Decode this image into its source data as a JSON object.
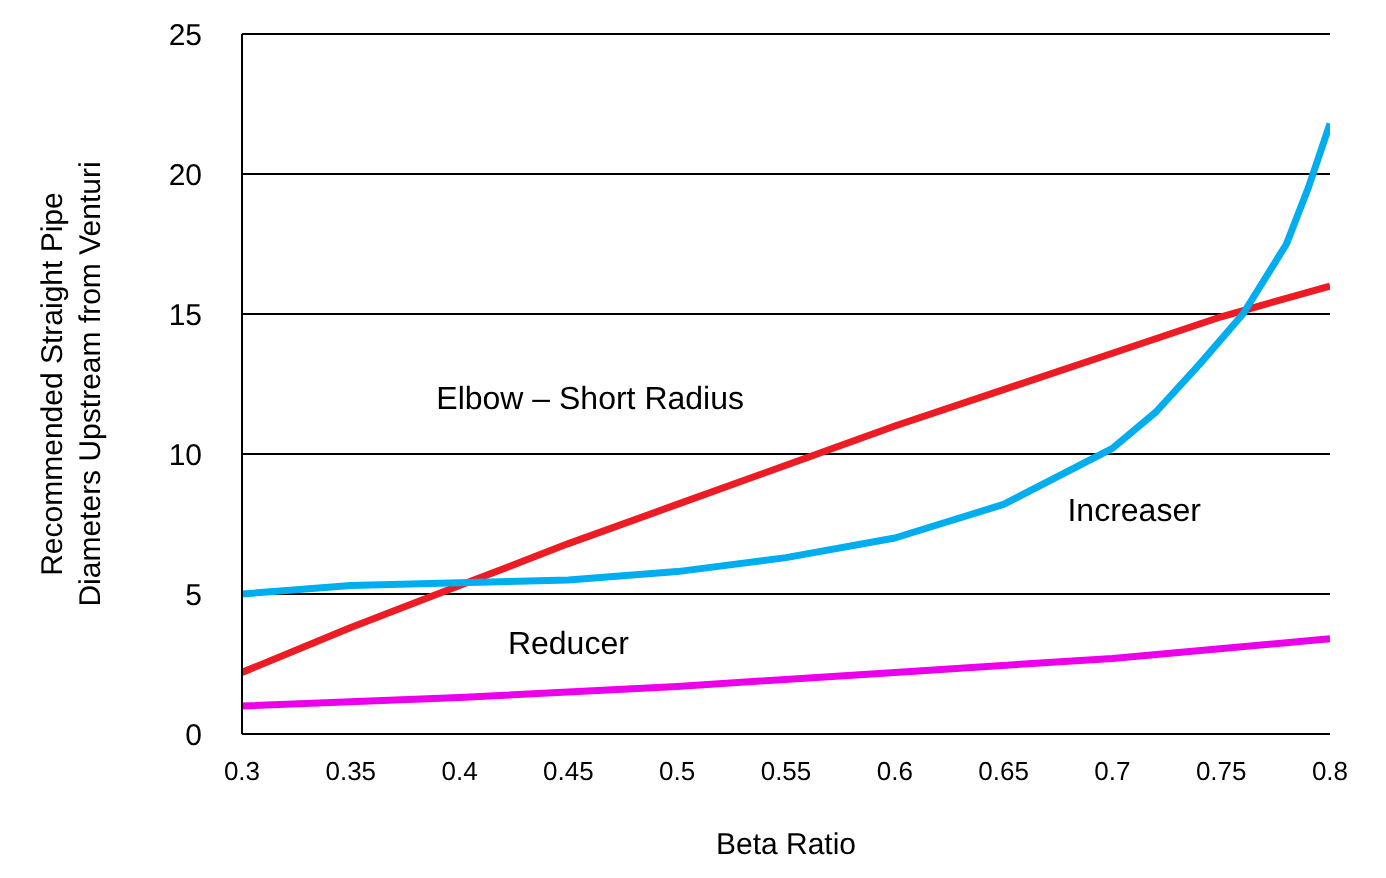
{
  "chart_data": {
    "type": "line",
    "xlabel": "Beta Ratio",
    "ylabel": "Recommended Straight Pipe\nDiameters Upstream from Venturi",
    "xlim": [
      0.3,
      0.8
    ],
    "xticks": [
      0.3,
      0.35,
      0.4,
      0.45,
      0.5,
      0.55,
      0.6,
      0.65,
      0.7,
      0.75,
      0.8
    ],
    "ylim": [
      0,
      25
    ],
    "yticks": [
      0,
      5,
      10,
      15,
      20,
      25
    ],
    "grid": "y",
    "marker": "none",
    "line_style": "solid",
    "series": [
      {
        "name": "Elbow – Short Radius",
        "color": "#ed1c24",
        "x": [
          0.3,
          0.35,
          0.4,
          0.45,
          0.5,
          0.55,
          0.6,
          0.65,
          0.7,
          0.75,
          0.8
        ],
        "values": [
          2.2,
          3.8,
          5.3,
          6.8,
          8.2,
          9.6,
          11.0,
          12.3,
          13.6,
          14.9,
          16.0
        ]
      },
      {
        "name": "Increaser",
        "color": "#00aeef",
        "x": [
          0.3,
          0.35,
          0.4,
          0.45,
          0.5,
          0.55,
          0.6,
          0.65,
          0.7,
          0.72,
          0.74,
          0.76,
          0.78,
          0.79,
          0.8
        ],
        "values": [
          5.0,
          5.3,
          5.4,
          5.5,
          5.8,
          6.3,
          7.0,
          8.2,
          10.2,
          11.5,
          13.2,
          15.0,
          17.5,
          19.5,
          21.8
        ]
      },
      {
        "name": "Reducer",
        "color": "#ec00ec",
        "x": [
          0.3,
          0.4,
          0.5,
          0.6,
          0.7,
          0.8
        ],
        "values": [
          1.0,
          1.3,
          1.7,
          2.2,
          2.7,
          3.4
        ]
      }
    ]
  }
}
